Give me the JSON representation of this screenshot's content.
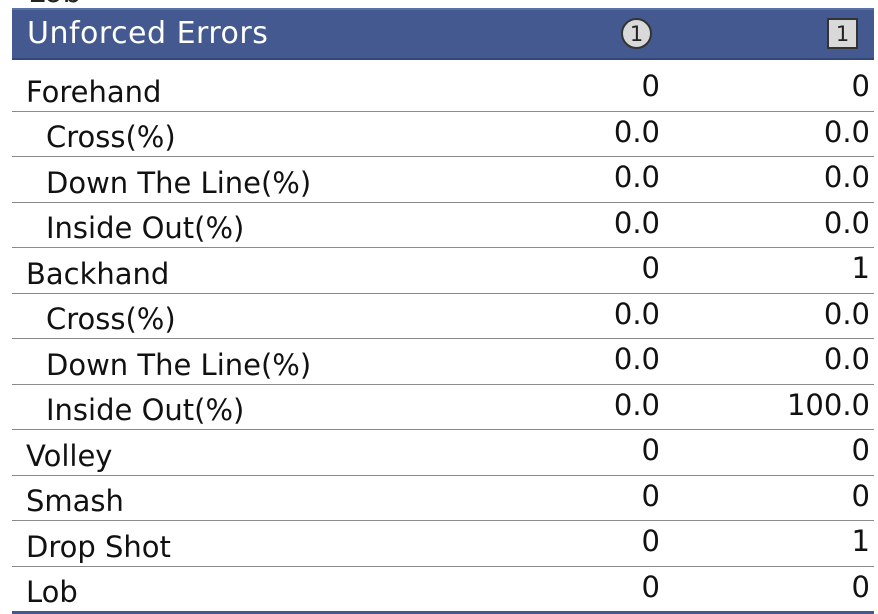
{
  "top_clipped_label": "Lob",
  "header": {
    "title": "Unforced Errors",
    "player1_badge": "1",
    "player2_badge": "1"
  },
  "rows": [
    {
      "label": "Forehand",
      "p1": "0",
      "p2": "0",
      "sub": false
    },
    {
      "label": "Cross(%)",
      "p1": "0.0",
      "p2": "0.0",
      "sub": true
    },
    {
      "label": "Down The Line(%)",
      "p1": "0.0",
      "p2": "0.0",
      "sub": true
    },
    {
      "label": "Inside Out(%)",
      "p1": "0.0",
      "p2": "0.0",
      "sub": true
    },
    {
      "label": "Backhand",
      "p1": "0",
      "p2": "1",
      "sub": false
    },
    {
      "label": "Cross(%)",
      "p1": "0.0",
      "p2": "0.0",
      "sub": true
    },
    {
      "label": "Down The Line(%)",
      "p1": "0.0",
      "p2": "0.0",
      "sub": true
    },
    {
      "label": "Inside Out(%)",
      "p1": "0.0",
      "p2": "100.0",
      "sub": true
    },
    {
      "label": "Volley",
      "p1": "0",
      "p2": "0",
      "sub": false
    },
    {
      "label": "Smash",
      "p1": "0",
      "p2": "0",
      "sub": false
    },
    {
      "label": "Drop Shot",
      "p1": "0",
      "p2": "1",
      "sub": false
    },
    {
      "label": "Lob",
      "p1": "0",
      "p2": "0",
      "sub": false
    }
  ],
  "colors": {
    "header_bg": "#44598f",
    "divider": "#8a8a8a",
    "badge_bg": "#d9d9d9"
  }
}
